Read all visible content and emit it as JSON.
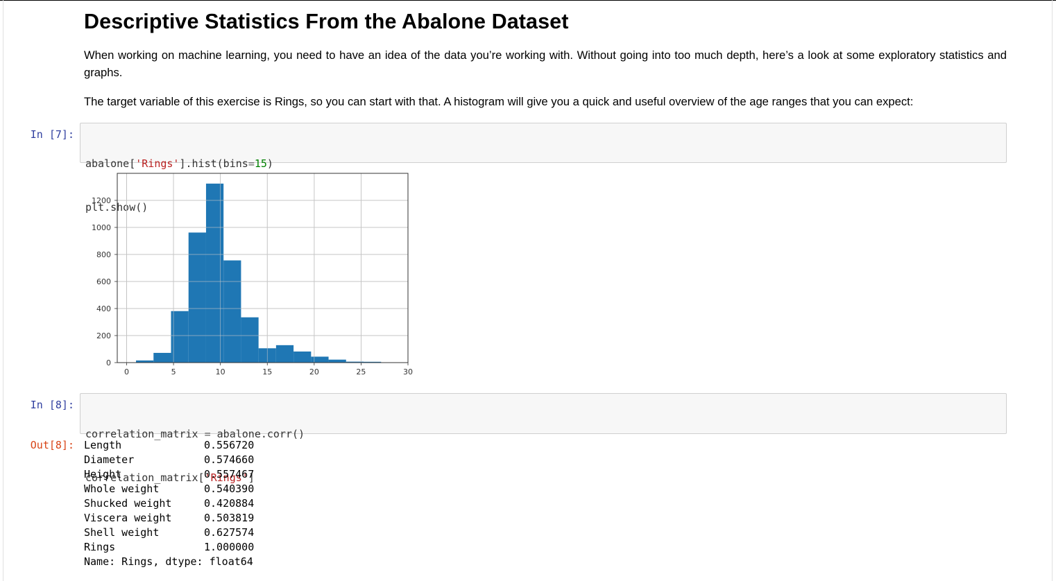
{
  "notebook": {
    "title": "Descriptive Statistics From the Abalone Dataset",
    "para1": "When working on machine learning, you need to have an idea of the data you’re working with. Without going into too much depth, here’s a look at some exploratory statistics and graphs.",
    "para2": "The target variable of this exercise is Rings, so you can start with that. A histogram will give you a quick and useful overview of the age ranges that you can expect:"
  },
  "cells": {
    "in7": {
      "prompt": "In [7]:",
      "line1": {
        "p1": "abalone[",
        "s1": "'Rings'",
        "p2": "].hist(bins",
        "op": "=",
        "num": "15",
        "p3": ")"
      },
      "line2": "plt.show()"
    },
    "in8": {
      "prompt": "In [8]:",
      "line1": {
        "p1": "correlation_matrix ",
        "op": "=",
        "p2": " abalone.corr()"
      },
      "line2": {
        "p1": "correlation_matrix[",
        "s1": "'Rings'",
        "p2": "]"
      }
    },
    "out8": {
      "prompt": "Out[8]:",
      "rows": [
        {
          "label": "Length",
          "value": "0.556720"
        },
        {
          "label": "Diameter",
          "value": "0.574660"
        },
        {
          "label": "Height",
          "value": "0.557467"
        },
        {
          "label": "Whole weight",
          "value": "0.540390"
        },
        {
          "label": "Shucked weight",
          "value": "0.420884"
        },
        {
          "label": "Viscera weight",
          "value": "0.503819"
        },
        {
          "label": "Shell weight",
          "value": "0.627574"
        },
        {
          "label": "Rings",
          "value": "1.000000"
        }
      ],
      "footer": "Name: Rings, dtype: float64"
    }
  },
  "chart_data": {
    "type": "bar",
    "bin_edges": [
      1,
      2.867,
      4.733,
      6.6,
      8.467,
      10.333,
      12.2,
      14.067,
      15.933,
      17.8,
      19.667,
      21.533,
      23.4,
      25.267,
      27.133,
      29
    ],
    "values": [
      16,
      72,
      381,
      962,
      1324,
      756,
      335,
      106,
      129,
      82,
      44,
      22,
      7,
      6,
      2
    ],
    "xlim": [
      -1,
      30
    ],
    "ylim": [
      0,
      1400
    ],
    "xticks": [
      "0",
      "5",
      "10",
      "15",
      "20",
      "25",
      "30"
    ],
    "yticks": [
      "0",
      "200",
      "400",
      "600",
      "800",
      "1000",
      "1200"
    ],
    "grid": true,
    "bar_color": "#1f77b4"
  }
}
